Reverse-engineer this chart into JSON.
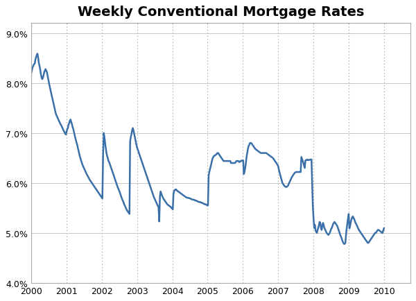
{
  "title": "Weekly Conventional Mortgage Rates",
  "xlim": [
    2000.0,
    2010.75
  ],
  "ylim": [
    4.0,
    9.2
  ],
  "yticks": [
    4.0,
    5.0,
    6.0,
    7.0,
    8.0,
    9.0
  ],
  "ytick_labels": [
    "4.0%",
    "5.0%",
    "6.0%",
    "7.0%",
    "8.0%",
    "9.0%"
  ],
  "xticks": [
    2000,
    2001,
    2002,
    2003,
    2004,
    2005,
    2006,
    2007,
    2008,
    2009,
    2010
  ],
  "line_color": "#3a6fa8",
  "line_width": 1.8,
  "bg_color": "#ffffff",
  "grid_color_h": "#c8c8c8",
  "grid_color_v": "#c0c0c0",
  "title_fontsize": 14,
  "rates": [
    8.21,
    8.27,
    8.32,
    8.35,
    8.38,
    8.39,
    8.47,
    8.52,
    8.56,
    8.59,
    8.52,
    8.41,
    8.35,
    8.28,
    8.19,
    8.12,
    8.08,
    8.1,
    8.15,
    8.22,
    8.25,
    8.28,
    8.25,
    8.22,
    8.15,
    8.08,
    8.01,
    7.94,
    7.88,
    7.82,
    7.76,
    7.7,
    7.64,
    7.58,
    7.52,
    7.46,
    7.4,
    7.36,
    7.33,
    7.3,
    7.27,
    7.24,
    7.21,
    7.18,
    7.16,
    7.13,
    7.1,
    7.07,
    7.04,
    7.02,
    6.99,
    6.97,
    7.02,
    7.08,
    7.1,
    7.17,
    7.2,
    7.25,
    7.27,
    7.22,
    7.18,
    7.12,
    7.08,
    7.02,
    6.96,
    6.9,
    6.85,
    6.8,
    6.75,
    6.69,
    6.63,
    6.57,
    6.52,
    6.47,
    6.43,
    6.39,
    6.35,
    6.32,
    6.29,
    6.26,
    6.23,
    6.2,
    6.17,
    6.15,
    6.12,
    6.1,
    6.07,
    6.05,
    6.03,
    6.01,
    5.99,
    5.97,
    5.95,
    5.93,
    5.91,
    5.89,
    5.87,
    5.85,
    5.83,
    5.81,
    5.79,
    5.77,
    5.75,
    5.73,
    5.71,
    5.69,
    6.54,
    7.0,
    6.92,
    6.8,
    6.7,
    6.6,
    6.54,
    6.5,
    6.44,
    6.42,
    6.38,
    6.34,
    6.3,
    6.26,
    6.22,
    6.18,
    6.14,
    6.1,
    6.06,
    6.02,
    5.98,
    5.94,
    5.9,
    5.87,
    5.84,
    5.8,
    5.76,
    5.72,
    5.68,
    5.65,
    5.62,
    5.58,
    5.55,
    5.52,
    5.49,
    5.46,
    5.44,
    5.42,
    5.4,
    5.38,
    6.84,
    6.92,
    6.98,
    7.06,
    7.1,
    7.05,
    6.98,
    6.92,
    6.85,
    6.78,
    6.72,
    6.68,
    6.64,
    6.6,
    6.56,
    6.52,
    6.48,
    6.44,
    6.4,
    6.36,
    6.32,
    6.28,
    6.24,
    6.2,
    6.16,
    6.12,
    6.08,
    6.04,
    6.0,
    5.96,
    5.92,
    5.88,
    5.84,
    5.8,
    5.76,
    5.72,
    5.69,
    5.66,
    5.63,
    5.6,
    5.57,
    5.54,
    5.51,
    5.23,
    5.73,
    5.83,
    5.79,
    5.75,
    5.72,
    5.69,
    5.67,
    5.65,
    5.63,
    5.61,
    5.59,
    5.57,
    5.56,
    5.55,
    5.54,
    5.53,
    5.52,
    5.5,
    5.49,
    5.47,
    5.78,
    5.84,
    5.86,
    5.87,
    5.87,
    5.85,
    5.84,
    5.83,
    5.82,
    5.81,
    5.8,
    5.79,
    5.78,
    5.77,
    5.76,
    5.75,
    5.74,
    5.73,
    5.72,
    5.71,
    5.71,
    5.7,
    5.7,
    5.7,
    5.69,
    5.69,
    5.68,
    5.67,
    5.67,
    5.67,
    5.66,
    5.66,
    5.65,
    5.65,
    5.64,
    5.64,
    5.63,
    5.62,
    5.62,
    5.62,
    5.61,
    5.61,
    5.6,
    5.6,
    5.59,
    5.58,
    5.58,
    5.57,
    5.57,
    5.56,
    5.55,
    5.55,
    6.15,
    6.22,
    6.28,
    6.33,
    6.39,
    6.45,
    6.5,
    6.52,
    6.54,
    6.55,
    6.56,
    6.57,
    6.58,
    6.6,
    6.6,
    6.58,
    6.56,
    6.54,
    6.52,
    6.5,
    6.48,
    6.46,
    6.44,
    6.44,
    6.44,
    6.44,
    6.44,
    6.44,
    6.44,
    6.44,
    6.44,
    6.44,
    6.44,
    6.4,
    6.4,
    6.4,
    6.4,
    6.4,
    6.4,
    6.4,
    6.42,
    6.44,
    6.44,
    6.44,
    6.44,
    6.42,
    6.42,
    6.44,
    6.44,
    6.45,
    6.45,
    6.45,
    6.18,
    6.22,
    6.3,
    6.4,
    6.52,
    6.6,
    6.68,
    6.74,
    6.76,
    6.8,
    6.8,
    6.8,
    6.78,
    6.76,
    6.74,
    6.72,
    6.7,
    6.68,
    6.67,
    6.66,
    6.65,
    6.64,
    6.63,
    6.62,
    6.61,
    6.6,
    6.6,
    6.6,
    6.6,
    6.6,
    6.6,
    6.6,
    6.6,
    6.6,
    6.59,
    6.58,
    6.57,
    6.56,
    6.55,
    6.54,
    6.53,
    6.52,
    6.51,
    6.5,
    6.48,
    6.46,
    6.44,
    6.42,
    6.4,
    6.38,
    6.36,
    6.32,
    6.25,
    6.2,
    6.15,
    6.1,
    6.05,
    6.0,
    5.98,
    5.96,
    5.94,
    5.93,
    5.92,
    5.92,
    5.93,
    5.94,
    5.97,
    6.0,
    6.03,
    6.06,
    6.09,
    6.12,
    6.14,
    6.16,
    6.18,
    6.2,
    6.21,
    6.22,
    6.22,
    6.22,
    6.22,
    6.22,
    6.22,
    6.22,
    6.22,
    6.52,
    6.48,
    6.44,
    6.4,
    6.35,
    6.3,
    6.45,
    6.46,
    6.46,
    6.47,
    6.46,
    6.46,
    6.46,
    6.47,
    6.47,
    6.47,
    5.97,
    5.53,
    5.29,
    5.1,
    5.16,
    5.05,
    5.02,
    5.0,
    5.06,
    5.1,
    5.16,
    5.22,
    5.2,
    5.1,
    5.06,
    5.14,
    5.2,
    5.16,
    5.1,
    5.07,
    5.04,
    5.01,
    4.99,
    4.97,
    4.96,
    4.98,
    5.0,
    5.04,
    5.08,
    5.1,
    5.14,
    5.18,
    5.2,
    5.22,
    5.2,
    5.18,
    5.16,
    5.14,
    5.1,
    5.06,
    5.02,
    4.98,
    4.94,
    4.91,
    4.87,
    4.83,
    4.8,
    4.78,
    4.78,
    4.8,
    4.96,
    5.09,
    5.2,
    5.3,
    5.38,
    5.09,
    5.14,
    5.21,
    5.27,
    5.31,
    5.33,
    5.3,
    5.28,
    5.24,
    5.2,
    5.18,
    5.15,
    5.12,
    5.09,
    5.06,
    5.04,
    5.02,
    5.0,
    4.98,
    4.96,
    4.94,
    4.92,
    4.9,
    4.88,
    4.86,
    4.84,
    4.82,
    4.8,
    4.8,
    4.82,
    4.84,
    4.86,
    4.88,
    4.9,
    4.92,
    4.94,
    4.96,
    4.98,
    5.0,
    5.0,
    5.02,
    5.04,
    5.06,
    5.06,
    5.05,
    5.04,
    5.03,
    5.02,
    5.0,
    5.0,
    5.05,
    5.09
  ]
}
